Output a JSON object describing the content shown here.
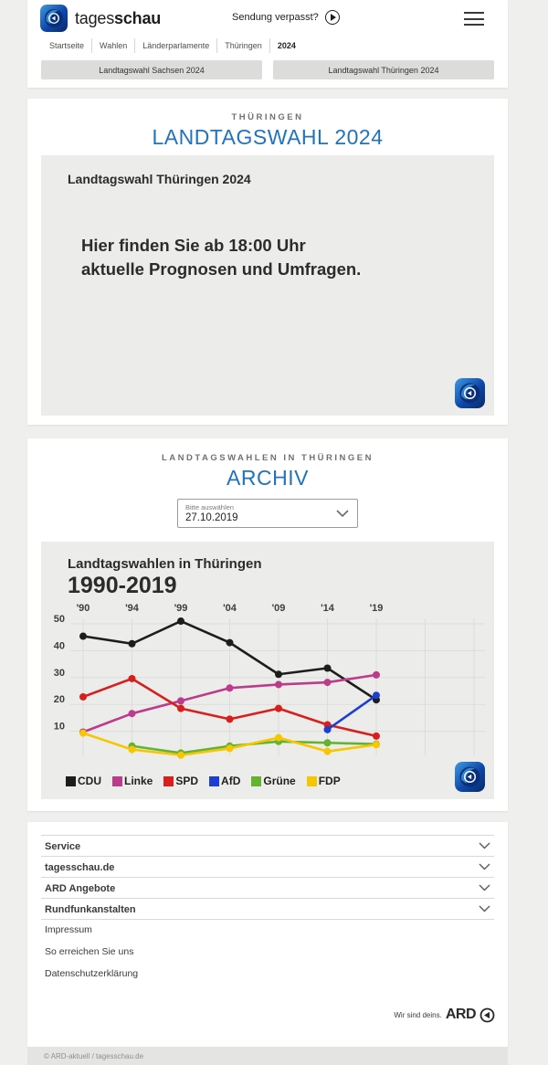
{
  "header": {
    "brand_regular": "tages",
    "brand_bold": "schau",
    "missed_show_label": "Sendung verpasst?"
  },
  "breadcrumb": {
    "items": [
      "Startseite",
      "Wahlen",
      "Länderparlamente",
      "Thüringen",
      "2024"
    ]
  },
  "quick_links": [
    "Landtagswahl Sachsen 2024",
    "Landtagswahl Thüringen 2024"
  ],
  "wahl_section": {
    "kicker": "THÜRINGEN",
    "title": "LANDTAGSWAHL 2024",
    "card_title": "Landtagswahl Thüringen 2024",
    "teaser_line1": "Hier finden Sie ab 18:00 Uhr",
    "teaser_line2": "aktuelle Prognosen und Umfragen."
  },
  "archive_section": {
    "kicker": "LANDTAGSWAHLEN IN THÜRINGEN",
    "title": "ARCHIV",
    "select_label": "Bitte auswählen",
    "select_value": "27.10.2019"
  },
  "chart_data": {
    "type": "line",
    "title": "Landtagswahlen in Thüringen",
    "subtitle": "1990-2019",
    "x": [
      1990,
      1994,
      1999,
      2004,
      2009,
      2014,
      2019
    ],
    "x_tick_labels": [
      "'90",
      "'94",
      "'99",
      "'04",
      "'09",
      "'14",
      "'19"
    ],
    "y_ticks": [
      10,
      20,
      30,
      40,
      50
    ],
    "ylim": [
      0,
      56
    ],
    "grid": true,
    "legend_position": "bottom",
    "series": [
      {
        "name": "CDU",
        "color": "#1d1d1b",
        "values": [
          45.4,
          42.6,
          51.0,
          43.0,
          31.2,
          33.5,
          21.7
        ]
      },
      {
        "name": "Linke",
        "color": "#bd3b8b",
        "values": [
          9.7,
          16.6,
          21.3,
          26.1,
          27.4,
          28.2,
          31.0
        ]
      },
      {
        "name": "SPD",
        "color": "#d71f1d",
        "values": [
          22.8,
          29.6,
          18.5,
          14.5,
          18.5,
          12.4,
          8.2
        ]
      },
      {
        "name": "AfD",
        "color": "#1c3fd1",
        "values": [
          null,
          null,
          null,
          null,
          null,
          10.6,
          23.4
        ]
      },
      {
        "name": "Grüne",
        "color": "#63b32e",
        "values": [
          null,
          4.5,
          1.9,
          4.5,
          6.2,
          5.7,
          5.2
        ]
      },
      {
        "name": "FDP",
        "color": "#f7c600",
        "values": [
          9.3,
          3.2,
          1.1,
          3.6,
          7.6,
          2.5,
          5.0
        ]
      }
    ]
  },
  "footer": {
    "accordions": [
      "Service",
      "tagesschau.de",
      "ARD Angebote",
      "Rundfunkanstalten"
    ],
    "links": [
      "Impressum",
      "So erreichen Sie uns",
      "Datenschutzerklärung"
    ],
    "ard_tagline": "Wir sind deins.",
    "ard_brand": "ARD",
    "copyright": "© ARD-aktuell / tagesschau.de"
  },
  "colors": {
    "accent_blue": "#2173bb",
    "card_gray": "#ececea"
  }
}
